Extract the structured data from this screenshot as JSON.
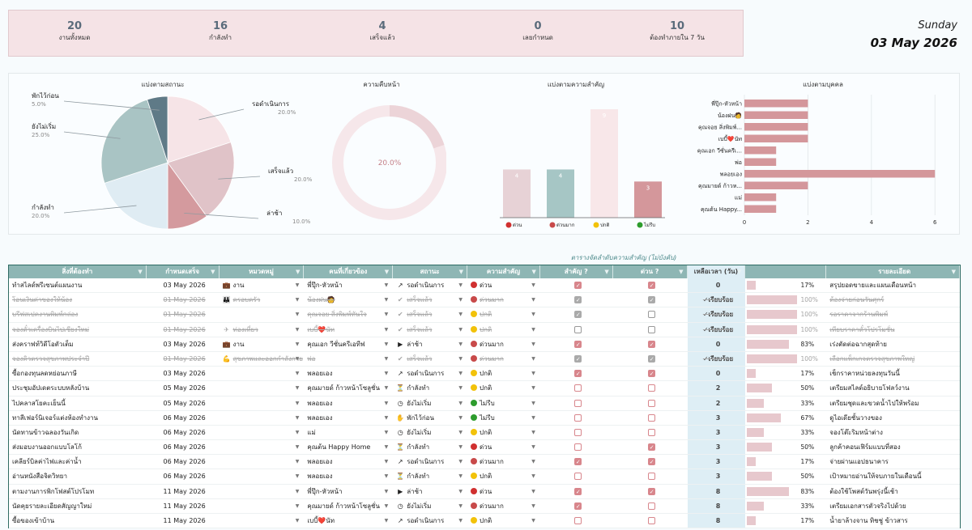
{
  "summary": [
    {
      "value": "20",
      "label": "งานทั้งหมด"
    },
    {
      "value": "16",
      "label": "กำลังทำ"
    },
    {
      "value": "4",
      "label": "เสร็จแล้ว"
    },
    {
      "value": "0",
      "label": "เลยกำหนด"
    },
    {
      "value": "10",
      "label": "ต้องทำภายใน 7 วัน"
    }
  ],
  "date": {
    "day": "Sunday",
    "full": "03 May 2026"
  },
  "charts": {
    "status_title": "แบ่งตามสถานะ",
    "progress_title": "ความคืบหน้า",
    "priority_title": "แบ่งตามความสำคัญ",
    "person_title": "แบ่งตามบุคคล"
  },
  "chart_data": [
    {
      "type": "pie",
      "title": "แบ่งตามสถานะ",
      "slices": [
        {
          "label": "รอดำเนินการ",
          "value": 20.0,
          "pct": "20.0%",
          "color": "#f6e4e7"
        },
        {
          "label": "เสร็จแล้ว",
          "value": 20.0,
          "pct": "20.0%",
          "color": "#e0c3c8"
        },
        {
          "label": "ล่าช้า",
          "value": 10.0,
          "pct": "10.0%",
          "color": "#d49a9e"
        },
        {
          "label": "กำลังทำ",
          "value": 20.0,
          "pct": "20.0%",
          "color": "#dfecf3"
        },
        {
          "label": "ยังไม่เริ่ม",
          "value": 25.0,
          "pct": "25.0%",
          "color": "#a9c4c4"
        },
        {
          "label": "พักไว้ก่อน",
          "value": 5.0,
          "pct": "5.0%",
          "color": "#5f7a87"
        }
      ]
    },
    {
      "type": "pie",
      "title": "ความคืบหน้า",
      "center_label": "20.0%",
      "values": [
        20.0,
        80.0
      ]
    },
    {
      "type": "bar",
      "title": "แบ่งตามความสำคัญ",
      "categories": [
        "ด่วน",
        "ด่วนมาก",
        "ปกติ",
        "ไม่รีบ"
      ],
      "values": [
        4,
        4,
        9,
        3
      ],
      "colors": [
        "#e7d2d6",
        "#a6c6c5",
        "#f8e7e9",
        "#d4979b"
      ],
      "dot_colors": [
        "#d03030",
        "#c84a4a",
        "#f2c20a",
        "#2d9c2d"
      ],
      "ylim": [
        0,
        9
      ]
    },
    {
      "type": "bar",
      "title": "แบ่งตามบุคคล",
      "orientation": "horizontal",
      "categories": [
        "พี่ปุ๊ก-หัวหน้า",
        "น้องฝน🧑",
        "คุณจอย สิ่งพิมพ์...",
        "เบบี้❤️นัท",
        "คุณเอก วีซั่นครีเ...",
        "พ่อ",
        "พลอยเอง",
        "คุณมายด์ ก้าวห...",
        "แม่",
        "คุณต้น Happy..."
      ],
      "values": [
        2,
        2,
        2,
        2,
        1,
        1,
        6,
        2,
        1,
        1
      ],
      "xticks": [
        "0",
        "2",
        "4",
        "6"
      ],
      "xlim": [
        0,
        6.3
      ]
    }
  ],
  "table": {
    "title": "ตารางจัดลำดับความสำคัญ (ไม่บังคับ)",
    "headers": [
      "สิ่งที่ต้องทำ",
      "กำหนดเสร็จ",
      "หมวดหมู่",
      "คนที่เกี่ยวข้อง",
      "สถานะ",
      "ความสำคัญ",
      "สำคัญ ?",
      "ด่วน ?",
      "เหลือเวลา (วัน)",
      "",
      "รายละเอียด"
    ],
    "rows": [
      {
        "task": "ทำสไลด์พรีเซนต์แผนงาน",
        "due": "03 May 2026",
        "cat_icon": "💼",
        "cat": "งาน",
        "person": "พี่ปุ๊ก-หัวหน้า",
        "st_icon": "↗",
        "status": "รอดำเนินการ",
        "pr_dot": "#d03030",
        "pr": "ด่วน",
        "imp": true,
        "urg": true,
        "left": "0",
        "pct": "17%",
        "pctv": 17,
        "detail": "สรุปยอดขายและแผนเดือนหน้า",
        "done": false
      },
      {
        "task": "โอนเงินค่าของให้น้อง",
        "due": "01 May 2026",
        "cat_icon": "👪",
        "cat": "ครอบครัว",
        "person": "น้องฝน🧑",
        "st_icon": "✔",
        "status": "เสร็จแล้ว",
        "pr_dot": "#c84a4a",
        "pr": "ด่วนมาก",
        "imp": true,
        "urg": true,
        "left": "✓เรียบร้อย",
        "pct": "100%",
        "pctv": 100,
        "detail": "ต้องจ่ายก่อนวันศุกร์",
        "done": true
      },
      {
        "task": "บรีฟสเปคงานพิมพ์กล่อง",
        "due": "01 May 2026",
        "cat_icon": "",
        "cat": "",
        "person": "คุณจอย สิ่งพิมพ์ทันใจ",
        "st_icon": "✔",
        "status": "เสร็จแล้ว",
        "pr_dot": "#f2c20a",
        "pr": "ปกติ",
        "imp": true,
        "urg": false,
        "left": "✓เรียบร้อย",
        "pct": "100%",
        "pctv": 100,
        "detail": "รอราคาจากร้านพิมพ์",
        "done": true
      },
      {
        "task": "จองตั๋วเครื่องบินไปเชียงใหม่",
        "due": "01 May 2026",
        "cat_icon": "✈",
        "cat": "ท่องเที่ยว",
        "person": "เบบี้❤️นัท",
        "st_icon": "✔",
        "status": "เสร็จแล้ว",
        "pr_dot": "#f2c20a",
        "pr": "ปกติ",
        "imp": false,
        "urg": false,
        "left": "✓เรียบร้อย",
        "pct": "100%",
        "pctv": 100,
        "detail": "เทียบราคาตั๋วโปรโมชั่น",
        "done": true
      },
      {
        "task": "ส่งคราฟท์วิดีโอตัวเต็ม",
        "due": "03 May 2026",
        "cat_icon": "💼",
        "cat": "งาน",
        "person": "คุณเอก วีซั่นครีเอทีฟ",
        "st_icon": "▶",
        "status": "ล่าช้า",
        "pr_dot": "#c84a4a",
        "pr": "ด่วนมาก",
        "imp": true,
        "urg": true,
        "left": "0",
        "pct": "83%",
        "pctv": 83,
        "detail": "เร่งตัดต่อฉากสุดท้าย",
        "done": false
      },
      {
        "task": "จองคิวตรวจสุขภาพประจำปี",
        "due": "01 May 2026",
        "cat_icon": "💪",
        "cat": "สุขภาพและออกกำลังกาย",
        "person": "พ่อ",
        "st_icon": "✔",
        "status": "เสร็จแล้ว",
        "pr_dot": "#c84a4a",
        "pr": "ด่วนมาก",
        "imp": true,
        "urg": true,
        "left": "✓เรียบร้อย",
        "pct": "100%",
        "pctv": 100,
        "detail": "เลือกแพ็กเกจตรวจสุขภาพใหญ่",
        "done": true
      },
      {
        "task": "ซื้อกองทุนลดหย่อนภาษี",
        "due": "03 May 2026",
        "cat_icon": "",
        "cat": "",
        "person": "พลอยเอง",
        "st_icon": "↗",
        "status": "รอดำเนินการ",
        "pr_dot": "#f2c20a",
        "pr": "ปกติ",
        "imp": true,
        "urg": true,
        "left": "0",
        "pct": "17%",
        "pctv": 17,
        "detail": "เช็กราคาหน่วยลงทุนวันนี้",
        "done": false
      },
      {
        "task": "ประชุมอัปเดตระบบหลังบ้าน",
        "due": "05 May 2026",
        "cat_icon": "",
        "cat": "",
        "person": "คุณมายด์ ก้าวหน้าโซลูชั่น",
        "st_icon": "⏳",
        "status": "กำลังทำ",
        "pr_dot": "#f2c20a",
        "pr": "ปกติ",
        "imp": false,
        "urg": false,
        "left": "2",
        "pct": "50%",
        "pctv": 50,
        "detail": "เตรียมสไลด์อธิบายโฟลว์งาน",
        "done": false
      },
      {
        "task": "ไปคลาสโยคะเย็นนี้",
        "due": "05 May 2026",
        "cat_icon": "",
        "cat": "",
        "person": "พลอยเอง",
        "st_icon": "◷",
        "status": "ยังไม่เริ่ม",
        "pr_dot": "#2d9c2d",
        "pr": "ไม่รีบ",
        "imp": false,
        "urg": false,
        "left": "2",
        "pct": "33%",
        "pctv": 33,
        "detail": "เตรียมชุดและขวดน้ำไปให้พร้อม",
        "done": false
      },
      {
        "task": "ทาสีเฟอร์นิเจอร์แต่งห้องทำงาน",
        "due": "06 May 2026",
        "cat_icon": "",
        "cat": "",
        "person": "พลอยเอง",
        "st_icon": "✋",
        "status": "พักไว้ก่อน",
        "pr_dot": "#2d9c2d",
        "pr": "ไม่รีบ",
        "imp": false,
        "urg": false,
        "left": "3",
        "pct": "67%",
        "pctv": 67,
        "detail": "ดูไอเดียชั้นวางของ",
        "done": false
      },
      {
        "task": "นัดทานข้าวฉลองวันเกิด",
        "due": "06 May 2026",
        "cat_icon": "",
        "cat": "",
        "person": "แม่",
        "st_icon": "◷",
        "status": "ยังไม่เริ่ม",
        "pr_dot": "#f2c20a",
        "pr": "ปกติ",
        "imp": false,
        "urg": false,
        "left": "3",
        "pct": "33%",
        "pctv": 33,
        "detail": "จองโต๊ะริมหน้าต่าง",
        "done": false
      },
      {
        "task": "ส่งมอบงานออกแบบโลโก้",
        "due": "06 May 2026",
        "cat_icon": "",
        "cat": "",
        "person": "คุณต้น Happy Home",
        "st_icon": "⏳",
        "status": "กำลังทำ",
        "pr_dot": "#d03030",
        "pr": "ด่วน",
        "imp": false,
        "urg": true,
        "left": "3",
        "pct": "50%",
        "pctv": 50,
        "detail": "ลูกค้าคอนเฟิร์มแบบที่สอง",
        "done": false
      },
      {
        "task": "เคลียร์บิลค่าไฟและค่าน้ำ",
        "due": "06 May 2026",
        "cat_icon": "",
        "cat": "",
        "person": "พลอยเอง",
        "st_icon": "↗",
        "status": "รอดำเนินการ",
        "pr_dot": "#c84a4a",
        "pr": "ด่วนมาก",
        "imp": true,
        "urg": true,
        "left": "3",
        "pct": "17%",
        "pctv": 17,
        "detail": "จ่ายผ่านแอปธนาคาร",
        "done": false
      },
      {
        "task": "อ่านหนังสือจิตวิทยา",
        "due": "06 May 2026",
        "cat_icon": "",
        "cat": "",
        "person": "พลอยเอง",
        "st_icon": "⏳",
        "status": "กำลังทำ",
        "pr_dot": "#f2c20a",
        "pr": "ปกติ",
        "imp": false,
        "urg": false,
        "left": "3",
        "pct": "50%",
        "pctv": 50,
        "detail": "เป้าหมายอ่านให้จบภายในเดือนนี้",
        "done": false
      },
      {
        "task": "ตามงานการพิกโฟสต์โปรโมท",
        "due": "11 May 2026",
        "cat_icon": "",
        "cat": "",
        "person": "พี่ปุ๊ก-หัวหน้า",
        "st_icon": "▶",
        "status": "ล่าช้า",
        "pr_dot": "#d03030",
        "pr": "ด่วน",
        "imp": true,
        "urg": true,
        "left": "8",
        "pct": "83%",
        "pctv": 83,
        "detail": "ต้องใช้โพสต์วันพรุ่งนี้เช้า",
        "done": false
      },
      {
        "task": "นัดคุยรายละเอียดสัญญาใหม่",
        "due": "11 May 2026",
        "cat_icon": "",
        "cat": "",
        "person": "คุณมายด์ ก้าวหน้าโซลูชั่น",
        "st_icon": "◷",
        "status": "ยังไม่เริ่ม",
        "pr_dot": "#c84a4a",
        "pr": "ด่วนมาก",
        "imp": true,
        "urg": false,
        "left": "8",
        "pct": "33%",
        "pctv": 33,
        "detail": "เตรียมเอกสารตัวจริงไปด้วย",
        "done": false
      },
      {
        "task": "ซื้อของเข้าบ้าน",
        "due": "11 May 2026",
        "cat_icon": "",
        "cat": "",
        "person": "เบบี้❤️นัท",
        "st_icon": "↗",
        "status": "รอดำเนินการ",
        "pr_dot": "#f2c20a",
        "pr": "ปกติ",
        "imp": false,
        "urg": false,
        "left": "8",
        "pct": "17%",
        "pctv": 17,
        "detail": "น้ำยาล้างจาน ทิชชู่ ข้าวสาร",
        "done": false
      }
    ]
  }
}
